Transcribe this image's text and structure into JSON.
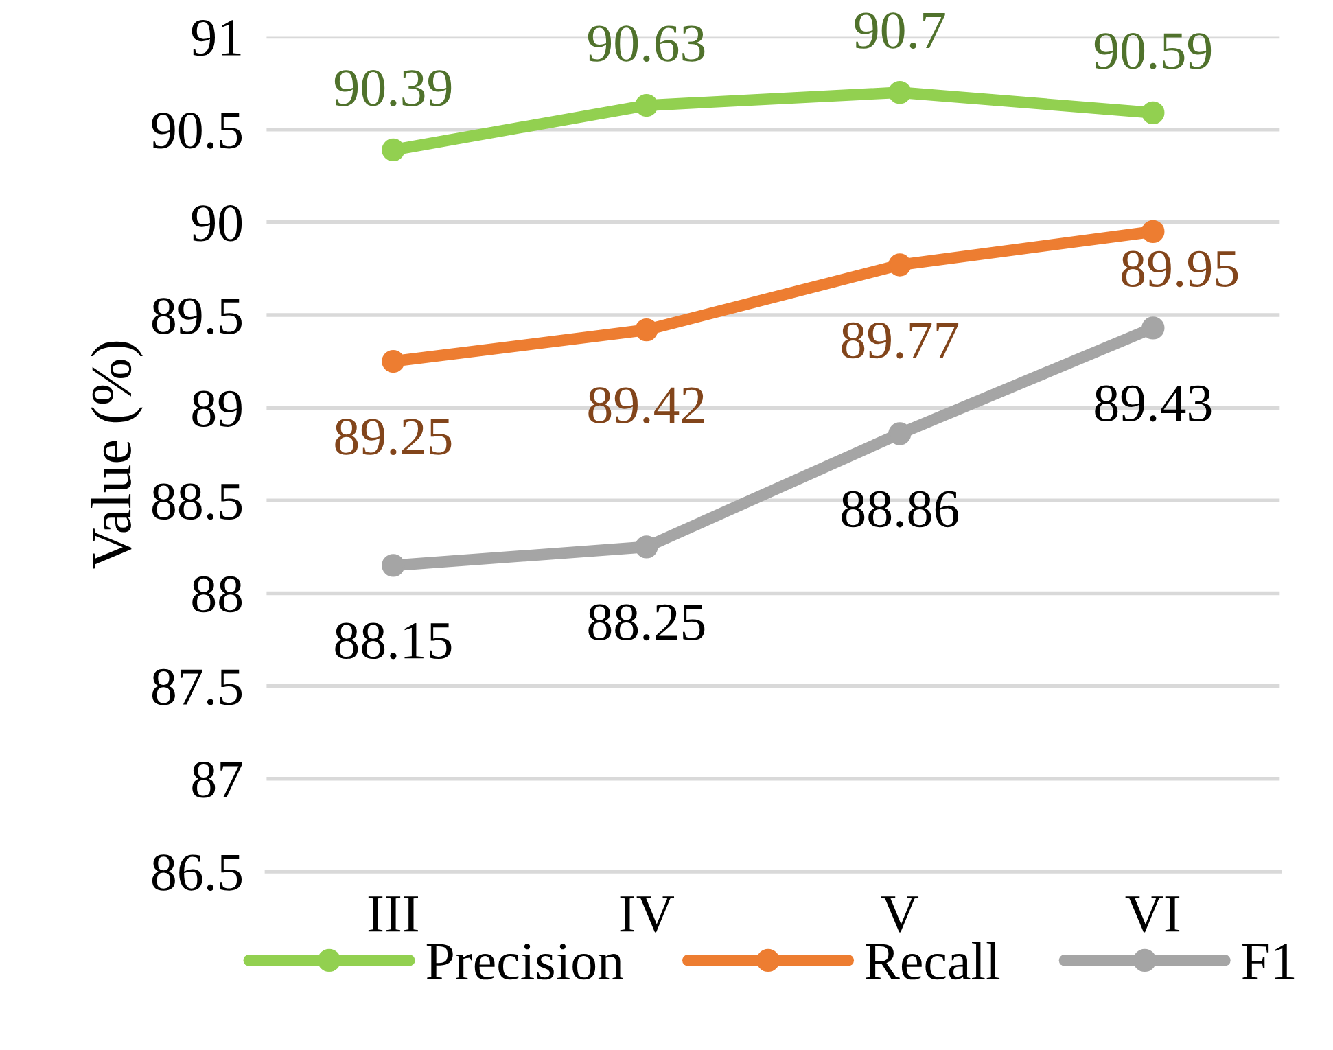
{
  "chart_data": {
    "type": "line",
    "ylabel": "Value (%)",
    "categories": [
      "III",
      "IV",
      "V",
      "VI"
    ],
    "series": [
      {
        "name": "Precision",
        "color": "#92d050",
        "values": [
          90.39,
          90.63,
          90.7,
          90.59
        ]
      },
      {
        "name": "Recall",
        "color": "#ed7d31",
        "values": [
          89.25,
          89.42,
          89.77,
          89.95
        ]
      },
      {
        "name": "F1",
        "color": "#a5a5a5",
        "values": [
          88.15,
          88.25,
          88.86,
          89.43
        ]
      }
    ],
    "ylim": [
      86.5,
      91
    ],
    "yticks": [
      86.5,
      87,
      87.5,
      88,
      88.5,
      89,
      89.5,
      90,
      90.5,
      91
    ],
    "grid": "y",
    "legend": "bottom",
    "marker": "circle",
    "line_style": "solid",
    "data_labels": true
  }
}
